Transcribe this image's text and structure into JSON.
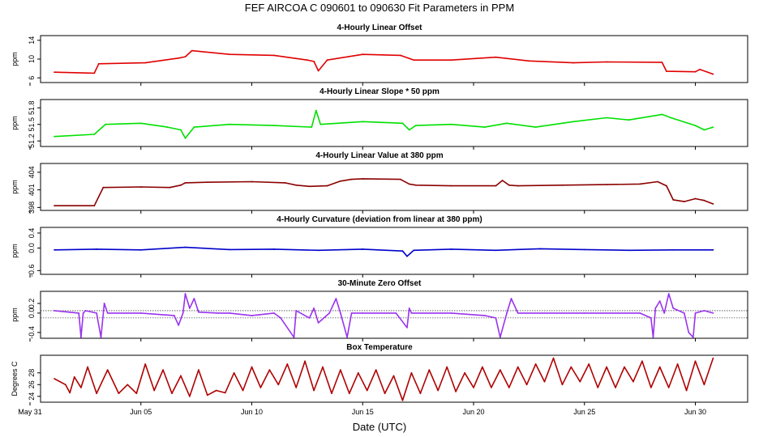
{
  "figure": {
    "title": "FEF   AIRCOA C   090601 to 090630   Fit Parameters in PPM",
    "xlabel": "Date (UTC)",
    "xticks": [
      "May 31",
      "Jun 05",
      "Jun 10",
      "Jun 15",
      "Jun 20",
      "Jun 25",
      "Jun 30"
    ]
  },
  "chart_data": [
    {
      "type": "line",
      "title": "4-Hourly Linear Offset",
      "ylabel": "ppm",
      "ylim": [
        5,
        15
      ],
      "yticks": [
        6,
        10,
        14
      ],
      "ytick_labels": [
        "6",
        "10",
        "14"
      ],
      "color": "#e00000",
      "x_range": [
        "Jun 01",
        "Jun 30"
      ],
      "x": [
        1.1,
        2.9,
        3.1,
        5.2,
        6.7,
        7.0,
        7.3,
        9.0,
        11.0,
        12.5,
        12.8,
        13.0,
        13.4,
        15.0,
        16.7,
        17.3,
        19.0,
        21.0,
        22.5,
        24.5,
        26.0,
        28.5,
        28.7,
        30.0,
        30.2,
        30.8
      ],
      "y": [
        7.2,
        7.0,
        9.0,
        9.2,
        10.2,
        10.5,
        11.8,
        11.0,
        10.8,
        9.8,
        9.5,
        7.5,
        9.8,
        11.0,
        10.8,
        9.8,
        9.8,
        10.4,
        9.6,
        9.2,
        9.4,
        9.3,
        7.4,
        7.3,
        7.8,
        6.8
      ]
    },
    {
      "type": "line",
      "title": "4-Hourly Linear Slope * 50 ppm",
      "ylabel": "ppm",
      "ylim": [
        51.1,
        51.95
      ],
      "yticks": [
        51.2,
        51.5,
        51.8
      ],
      "ytick_labels": [
        "51.2",
        "51.5",
        "51.8"
      ],
      "color": "#00e000",
      "x_range": [
        "Jun 01",
        "Jun 30"
      ],
      "x": [
        1.1,
        2.9,
        3.4,
        5.0,
        6.2,
        6.8,
        7.0,
        7.4,
        9.0,
        11.0,
        12.7,
        12.9,
        13.1,
        15.0,
        16.8,
        17.1,
        17.4,
        19.0,
        20.5,
        21.5,
        22.8,
        24.5,
        26.0,
        27.0,
        28.5,
        28.9,
        30.0,
        30.4,
        30.8
      ],
      "y": [
        51.28,
        51.32,
        51.5,
        51.52,
        51.45,
        51.4,
        51.25,
        51.45,
        51.5,
        51.48,
        51.45,
        51.75,
        51.5,
        51.55,
        51.52,
        51.4,
        51.48,
        51.5,
        51.45,
        51.52,
        51.45,
        51.55,
        51.62,
        51.58,
        51.68,
        51.62,
        51.48,
        51.4,
        51.45
      ]
    },
    {
      "type": "line",
      "title": "4-Hourly Linear Value at 380 ppm",
      "ylabel": "ppm",
      "ylim": [
        397.5,
        405.5
      ],
      "yticks": [
        398,
        401,
        404
      ],
      "ytick_labels": [
        "398",
        "401",
        "404"
      ],
      "color": "#8b0000",
      "x_range": [
        "Jun 01",
        "Jun 30"
      ],
      "x": [
        1.1,
        2.9,
        3.3,
        5.0,
        6.3,
        6.8,
        7.0,
        8.0,
        10.0,
        11.5,
        12.0,
        12.6,
        13.4,
        14.0,
        14.5,
        15.0,
        16.7,
        17.1,
        17.4,
        19.0,
        21.0,
        21.3,
        21.6,
        22.0,
        24.0,
        26.0,
        27.5,
        28.3,
        28.7,
        29.0,
        29.5,
        30.0,
        30.4,
        30.8
      ],
      "y": [
        398.3,
        398.3,
        401.4,
        401.5,
        401.4,
        401.8,
        402.2,
        402.3,
        402.4,
        402.2,
        401.8,
        401.6,
        401.7,
        402.5,
        402.8,
        402.9,
        402.8,
        402.0,
        401.8,
        401.7,
        401.7,
        402.6,
        401.8,
        401.7,
        401.8,
        401.9,
        402.0,
        402.4,
        401.7,
        399.3,
        399.0,
        399.5,
        399.2,
        398.6
      ]
    },
    {
      "type": "line",
      "title": "4-Hourly Curvature (deviation from linear at 380 ppm)",
      "ylabel": "ppm",
      "ylim": [
        -0.7,
        0.55
      ],
      "yticks": [
        -0.6,
        0.0,
        0.4
      ],
      "ytick_labels": [
        "-0.6",
        "0.0",
        "0.4"
      ],
      "color": "#0000cc",
      "x_range": [
        "Jun 01",
        "Jun 30"
      ],
      "x": [
        1.1,
        3.0,
        5.0,
        7.0,
        9.0,
        11.0,
        13.0,
        15.0,
        16.8,
        17.0,
        17.3,
        19.0,
        21.0,
        23.0,
        25.0,
        27.0,
        29.0,
        30.8
      ],
      "y": [
        -0.05,
        -0.03,
        -0.05,
        0.02,
        -0.04,
        -0.03,
        -0.06,
        -0.03,
        -0.08,
        -0.22,
        -0.06,
        -0.03,
        -0.06,
        -0.02,
        -0.04,
        -0.06,
        -0.05,
        -0.05
      ]
    },
    {
      "type": "line",
      "title": "30-Minute Zero Offset",
      "ylabel": "ppm",
      "ylim": [
        -0.52,
        0.45
      ],
      "yticks": [
        -0.4,
        0.0,
        0.2
      ],
      "ytick_labels": [
        "-0.4",
        "0.0",
        "0.2"
      ],
      "reference_lines": [
        0.05,
        -0.1
      ],
      "color": "#9933ee",
      "x_range": [
        "Jun 01",
        "Jun 30"
      ],
      "x": [
        1.1,
        2.2,
        2.3,
        2.4,
        2.5,
        3.0,
        3.2,
        3.35,
        3.5,
        5.0,
        6.5,
        6.7,
        6.9,
        7.0,
        7.2,
        7.4,
        7.6,
        8.5,
        9.0,
        10.0,
        11.0,
        11.3,
        11.9,
        12.0,
        12.6,
        12.8,
        13.0,
        13.5,
        13.8,
        14.0,
        14.3,
        14.5,
        15.0,
        16.5,
        17.0,
        17.1,
        17.2,
        19.0,
        20.5,
        21.0,
        21.2,
        21.5,
        21.7,
        22.0,
        25.0,
        27.5,
        28.0,
        28.1,
        28.2,
        28.4,
        28.6,
        28.8,
        29.0,
        29.5,
        29.7,
        29.9,
        30.0,
        30.4,
        30.8
      ],
      "y": [
        0.05,
        0.0,
        -0.5,
        0.0,
        0.05,
        0.0,
        -0.5,
        0.2,
        0.0,
        0.0,
        -0.05,
        -0.25,
        0.0,
        0.4,
        0.1,
        0.3,
        0.02,
        0.0,
        0.0,
        -0.05,
        0.0,
        -0.1,
        -0.5,
        0.05,
        -0.1,
        0.1,
        -0.2,
        0.0,
        0.3,
        0.0,
        -0.5,
        0.0,
        0.0,
        0.0,
        -0.3,
        0.1,
        0.0,
        0.0,
        -0.05,
        -0.1,
        -0.5,
        0.0,
        0.3,
        0.0,
        0.0,
        0.0,
        -0.1,
        -0.5,
        0.1,
        0.25,
        0.0,
        0.4,
        0.1,
        0.0,
        -0.4,
        -0.5,
        0.0,
        0.05,
        0.0
      ]
    },
    {
      "type": "line",
      "title": "Box Temperature",
      "ylabel": "Degrees C",
      "ylim": [
        23,
        31
      ],
      "yticks": [
        24,
        26,
        28
      ],
      "ytick_labels": [
        "24",
        "26",
        "28"
      ],
      "color": "#b00000",
      "x_range": [
        "Jun 01",
        "Jun 30"
      ],
      "x": [
        1.1,
        1.6,
        1.8,
        2.0,
        2.3,
        2.6,
        3.0,
        3.5,
        4.0,
        4.4,
        4.8,
        5.2,
        5.6,
        6.0,
        6.4,
        6.8,
        7.2,
        7.6,
        8.0,
        8.4,
        8.8,
        9.2,
        9.6,
        10.0,
        10.4,
        10.8,
        11.2,
        11.6,
        12.0,
        12.4,
        12.8,
        13.2,
        13.6,
        14.0,
        14.4,
        14.8,
        15.2,
        15.6,
        16.0,
        16.4,
        16.8,
        17.2,
        17.6,
        18.0,
        18.4,
        18.8,
        19.2,
        19.6,
        20.0,
        20.4,
        20.8,
        21.2,
        21.6,
        22.0,
        22.4,
        22.8,
        23.2,
        23.6,
        24.0,
        24.4,
        24.8,
        25.2,
        25.6,
        26.0,
        26.4,
        26.8,
        27.2,
        27.6,
        28.0,
        28.4,
        28.8,
        29.2,
        29.6,
        30.0,
        30.4,
        30.8
      ],
      "y": [
        27.0,
        26.0,
        24.6,
        27.3,
        25.5,
        29.0,
        24.5,
        28.5,
        24.5,
        26.0,
        24.5,
        29.5,
        25.0,
        28.5,
        24.5,
        27.5,
        24.0,
        28.5,
        24.2,
        25.0,
        24.6,
        28.0,
        25.0,
        29.0,
        25.5,
        28.5,
        26.0,
        29.5,
        25.5,
        30.0,
        25.0,
        29.0,
        24.5,
        28.5,
        24.5,
        28.0,
        25.0,
        28.5,
        24.5,
        27.5,
        23.3,
        28.0,
        24.5,
        28.5,
        25.0,
        29.0,
        24.8,
        28.0,
        25.5,
        29.0,
        25.5,
        28.5,
        25.5,
        29.0,
        26.0,
        29.5,
        26.5,
        30.5,
        26.0,
        29.0,
        26.5,
        29.5,
        25.5,
        29.0,
        25.5,
        29.0,
        26.5,
        30.0,
        25.5,
        29.0,
        25.5,
        29.5,
        25.0,
        30.0,
        26.0,
        30.5
      ]
    }
  ]
}
